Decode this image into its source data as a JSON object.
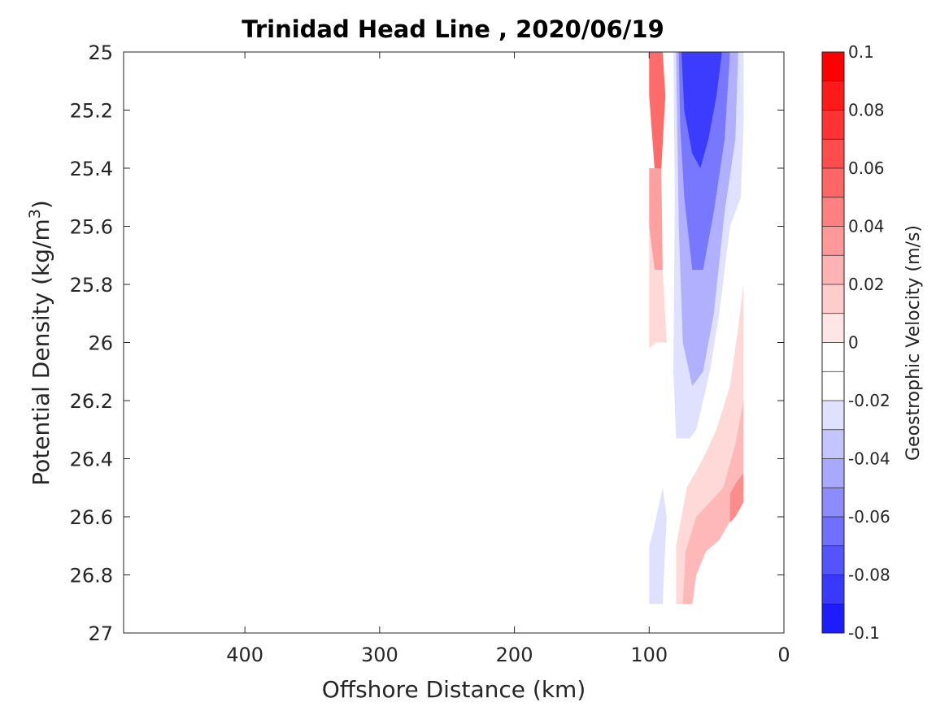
{
  "chart_data": {
    "type": "heatmap",
    "subtype": "filled-contour",
    "title": "Trinidad Head Line , 2020/06/19",
    "xlabel": "Offshore Distance (km)",
    "ylabel": "Potential Density (kg/m",
    "ylabel_sup": "3",
    "ylabel_suffix": ")",
    "xlim": [
      490,
      0
    ],
    "x_reversed": true,
    "ylim": [
      25,
      27
    ],
    "y_reversed": true,
    "x_ticks": [
      400,
      300,
      200,
      100,
      0
    ],
    "x_tick_labels": [
      "400",
      "300",
      "200",
      "100",
      "0"
    ],
    "y_ticks": [
      25,
      25.2,
      25.4,
      25.6,
      25.8,
      26,
      26.2,
      26.4,
      26.6,
      26.8,
      27
    ],
    "y_tick_labels": [
      "25",
      "25.2",
      "25.4",
      "25.6",
      "25.8",
      "26",
      "26.2",
      "26.4",
      "26.6",
      "26.8",
      "27"
    ],
    "grid": false,
    "colorbar": {
      "label": "Geostrophic Velocity (m/s)",
      "range": [
        -0.1,
        0.1
      ],
      "levels": [
        0.1,
        0.09,
        0.08,
        0.07,
        0.06,
        0.05,
        0.04,
        0.03,
        0.02,
        0.01,
        0,
        -0.01,
        -0.02,
        -0.03,
        -0.04,
        -0.05,
        -0.06,
        -0.07,
        -0.08,
        -0.09,
        -0.1
      ],
      "tick_values": [
        0.1,
        0.08,
        0.06,
        0.04,
        0.02,
        0,
        -0.02,
        -0.04,
        -0.06,
        -0.08,
        -0.1
      ],
      "tick_labels": [
        "0.1",
        "0.08",
        "0.06",
        "0.04",
        "0.02",
        "0",
        "-0.02",
        "-0.04",
        "-0.06",
        "-0.08",
        "-0.1"
      ],
      "colors": [
        "#ff0000",
        "#ff1a1a",
        "#ff3333",
        "#ff4d4d",
        "#ff6666",
        "#ff8080",
        "#ff9999",
        "#ffb3b3",
        "#ffcccc",
        "#ffe6e6",
        "#ffffff",
        "#ffffff",
        "#e0e0ff",
        "#c4c4ff",
        "#a8a8ff",
        "#8c8cff",
        "#7070ff",
        "#5454ff",
        "#3838ff",
        "#1c1cff",
        "#0000ff"
      ],
      "placement": "right"
    },
    "regions": [
      {
        "name": "offshore-warm-core",
        "value": 0.06,
        "color": "#ff6a6a",
        "polygon": [
          [
            100,
            25
          ],
          [
            90,
            25
          ],
          [
            88,
            25.15
          ],
          [
            91,
            25.4
          ],
          [
            96,
            25.4
          ],
          [
            100,
            25.15
          ]
        ]
      },
      {
        "name": "offshore-warm-mid",
        "value": 0.04,
        "color": "#ffa0a0",
        "polygon": [
          [
            100,
            25.4
          ],
          [
            91,
            25.4
          ],
          [
            90,
            25.75
          ],
          [
            96,
            25.75
          ],
          [
            100,
            25.6
          ]
        ]
      },
      {
        "name": "offshore-warm-edge",
        "value": 0.02,
        "color": "#ffd8d8",
        "polygon": [
          [
            100,
            25.6
          ],
          [
            96,
            25.75
          ],
          [
            90,
            25.75
          ],
          [
            87,
            26.0
          ],
          [
            95,
            26.0
          ],
          [
            100,
            26.02
          ]
        ]
      },
      {
        "name": "near-zero-gap",
        "value": 0.0,
        "color": "#ffffff",
        "polygon": [
          [
            86,
            25
          ],
          [
            82,
            25
          ],
          [
            81,
            25.5
          ],
          [
            85,
            25.5
          ]
        ]
      },
      {
        "name": "jet-outer",
        "value": -0.02,
        "color": "#e0e0ff",
        "polygon": [
          [
            82,
            25
          ],
          [
            30,
            25
          ],
          [
            30,
            25.25
          ],
          [
            32,
            25.5
          ],
          [
            40,
            25.6
          ],
          [
            48,
            25.9
          ],
          [
            55,
            26.1
          ],
          [
            60,
            26.2
          ],
          [
            65,
            26.3
          ],
          [
            70,
            26.33
          ],
          [
            80,
            26.33
          ],
          [
            82,
            26.1
          ],
          [
            81,
            25.5
          ]
        ]
      },
      {
        "name": "jet-mid",
        "value": -0.04,
        "color": "#b0b0ff",
        "polygon": [
          [
            80,
            25
          ],
          [
            34,
            25
          ],
          [
            36,
            25.3
          ],
          [
            44,
            25.55
          ],
          [
            52,
            25.9
          ],
          [
            60,
            26.1
          ],
          [
            68,
            26.15
          ],
          [
            75,
            26.0
          ],
          [
            78,
            25.6
          ]
        ]
      },
      {
        "name": "jet-inner",
        "value": -0.06,
        "color": "#7878ff",
        "polygon": [
          [
            78,
            25
          ],
          [
            40,
            25
          ],
          [
            44,
            25.3
          ],
          [
            52,
            25.55
          ],
          [
            60,
            25.75
          ],
          [
            68,
            25.75
          ],
          [
            74,
            25.5
          ],
          [
            77,
            25.25
          ]
        ]
      },
      {
        "name": "jet-core",
        "value": -0.08,
        "color": "#3c3cff",
        "polygon": [
          [
            76,
            25
          ],
          [
            46,
            25
          ],
          [
            50,
            25.15
          ],
          [
            56,
            25.3
          ],
          [
            62,
            25.4
          ],
          [
            68,
            25.35
          ],
          [
            74,
            25.2
          ]
        ]
      },
      {
        "name": "deep-offshore-negative",
        "value": -0.02,
        "color": "#e0e0ff",
        "polygon": [
          [
            100,
            26.9
          ],
          [
            90,
            26.9
          ],
          [
            87,
            26.6
          ],
          [
            90,
            26.5
          ],
          [
            97,
            26.65
          ],
          [
            100,
            26.7
          ]
        ]
      },
      {
        "name": "nearshore-warm-outer",
        "value": 0.02,
        "color": "#ffd8d8",
        "polygon": [
          [
            30,
            25.8
          ],
          [
            30,
            26.5
          ],
          [
            40,
            26.58
          ],
          [
            55,
            26.6
          ],
          [
            65,
            26.62
          ],
          [
            70,
            26.7
          ],
          [
            75,
            26.9
          ],
          [
            80,
            26.9
          ],
          [
            80,
            26.7
          ],
          [
            72,
            26.5
          ],
          [
            60,
            26.4
          ],
          [
            50,
            26.3
          ],
          [
            40,
            26.15
          ],
          [
            34,
            25.95
          ]
        ]
      },
      {
        "name": "nearshore-warm-mid",
        "value": 0.04,
        "color": "#ffb8b8",
        "polygon": [
          [
            30,
            26.2
          ],
          [
            30,
            26.5
          ],
          [
            38,
            26.6
          ],
          [
            48,
            26.68
          ],
          [
            58,
            26.72
          ],
          [
            65,
            26.8
          ],
          [
            68,
            26.9
          ],
          [
            75,
            26.9
          ],
          [
            73,
            26.72
          ],
          [
            65,
            26.6
          ],
          [
            55,
            26.55
          ],
          [
            45,
            26.5
          ],
          [
            36,
            26.35
          ]
        ]
      },
      {
        "name": "nearshore-warm-inner",
        "value": 0.06,
        "color": "#ff8c8c",
        "polygon": [
          [
            30,
            26.45
          ],
          [
            30,
            26.55
          ],
          [
            36,
            26.6
          ],
          [
            40,
            26.62
          ],
          [
            40,
            26.52
          ],
          [
            35,
            26.48
          ]
        ]
      }
    ]
  }
}
